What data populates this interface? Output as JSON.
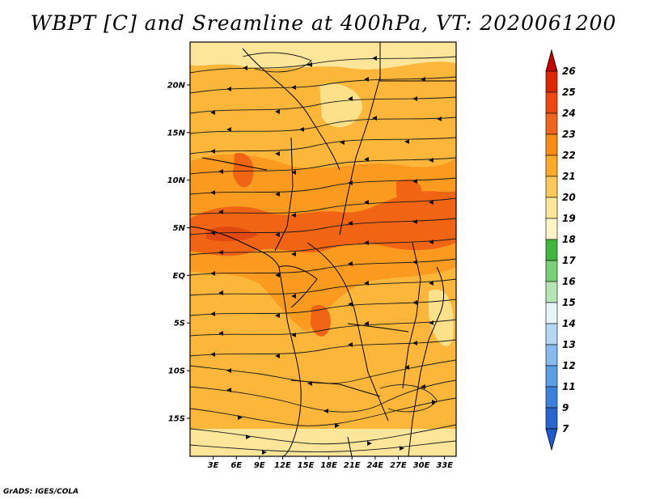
{
  "title": "WBPT [C] and Sreamline at 400hPa, VT: 2020061200",
  "credit": "GrADS: IGES/COLA",
  "map": {
    "lat_ticks": [
      "20N",
      "15N",
      "10N",
      "5N",
      "EQ",
      "5S",
      "10S",
      "15S"
    ],
    "lon_ticks": [
      "3E",
      "6E",
      "9E",
      "12E",
      "15E",
      "18E",
      "21E",
      "24E",
      "27E",
      "30E",
      "33E"
    ],
    "lat_values": [
      20,
      15,
      10,
      5,
      0,
      -5,
      -10,
      -15
    ],
    "lon_values": [
      3,
      6,
      9,
      12,
      15,
      18,
      21,
      24,
      27,
      30,
      33
    ],
    "lon_range": [
      0,
      34.5
    ],
    "lat_range": [
      -19,
      24.5
    ],
    "field": "WBPT",
    "units": "C",
    "level": "400hPa"
  },
  "colorbar": {
    "levels": [
      "26",
      "25",
      "24",
      "23",
      "22",
      "21",
      "20",
      "19",
      "18",
      "17",
      "16",
      "15",
      "14",
      "13",
      "12",
      "11",
      "9",
      "7"
    ],
    "colors": [
      "#c80000",
      "#dc2800",
      "#f04614",
      "#f0641e",
      "#fa8c14",
      "#fcaa28",
      "#fdc85a",
      "#fde69a",
      "#fff5c8",
      "#40b840",
      "#78d078",
      "#b4e6b4",
      "#e6f5f5",
      "#b4d7f5",
      "#87bbf0",
      "#5a9ee6",
      "#3c82dc",
      "#2864d2",
      "#1e4bc8"
    ],
    "colors_note_top": "#c80000",
    "colors_note_bottom": "#1e5ad2"
  }
}
